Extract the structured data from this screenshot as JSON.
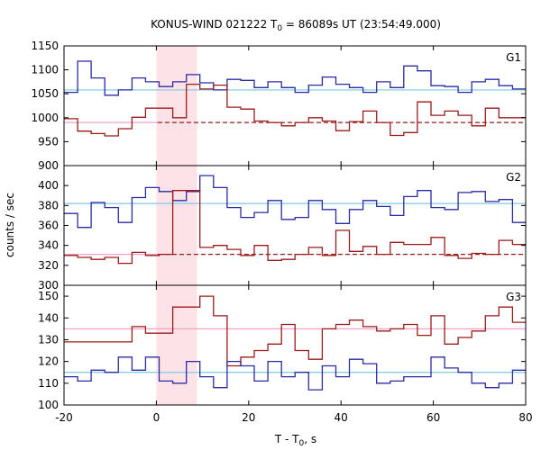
{
  "title": {
    "prefix": "KONUS-WIND 021222 T",
    "sub": "0",
    "suffix": " = 86089s UT (23:54:49.000)"
  },
  "ylabel": "counts / sec",
  "xlabel": {
    "prefix": "T - T",
    "sub": "0",
    "suffix": ", s"
  },
  "colors": {
    "blue_series": "#2b2ba4",
    "red_series": "#9c1b1b",
    "blue_background": "#7ec8e3",
    "red_background": "#f2a0c8",
    "shade": "#fde3e8"
  },
  "chart_data": {
    "type": "line",
    "step": true,
    "xlim": [
      -20,
      80
    ],
    "x_ticks": [
      -20,
      0,
      20,
      40,
      60,
      80
    ],
    "bin_width_s": 2.944,
    "bin_start": -20,
    "shaded_interval": [
      0,
      8.8
    ],
    "grid": false,
    "panels": [
      {
        "label": "G1",
        "ylim": [
          900,
          1150
        ],
        "y_ticks": [
          900,
          950,
          1000,
          1050,
          1100,
          1150
        ],
        "background": [
          {
            "series": "blue",
            "value": 1058,
            "x_range": [
              -20,
              80
            ]
          },
          {
            "series": "red",
            "value": 990,
            "x_range": [
              -20,
              0.3
            ],
            "dashed_from": 0.3
          }
        ],
        "series": [
          {
            "series": "blue",
            "values": [
              1053,
              1118,
              1083,
              1047,
              1058,
              1083,
              1075,
              1065,
              1075,
              1090,
              1073,
              1058,
              1080,
              1078,
              1063,
              1075,
              1063,
              1053,
              1068,
              1085,
              1070,
              1063,
              1053,
              1075,
              1063,
              1108,
              1098,
              1067,
              1065,
              1053,
              1075,
              1080,
              1067,
              1060,
              1058,
              1060,
              1080,
              1080
            ]
          },
          {
            "series": "red",
            "values": [
              998,
              972,
              967,
              962,
              977,
              1001,
              1020,
              1020,
              1000,
              1070,
              1060,
              1068,
              1022,
              1018,
              993,
              990,
              983,
              990,
              1000,
              993,
              973,
              992,
              1014,
              990,
              963,
              969,
              1033,
              1005,
              1014,
              1005,
              983,
              1020,
              1000,
              1000,
              1000,
              993,
              993,
              966,
              990,
              1035,
              1003,
              993,
              990
            ]
          }
        ]
      },
      {
        "label": "G2",
        "ylim": [
          300,
          420
        ],
        "y_ticks": [
          300,
          320,
          340,
          360,
          380,
          400,
          420
        ],
        "background": [
          {
            "series": "blue",
            "value": 382,
            "x_range": [
              -20,
              80
            ]
          },
          {
            "series": "red",
            "value": 331,
            "x_range": [
              -20,
              0.3
            ],
            "dashed_from": 0.3
          }
        ],
        "series": [
          {
            "series": "blue",
            "values": [
              372,
              358,
              383,
              378,
              363,
              388,
              398,
              394,
              385,
              394,
              410,
              398,
              378,
              368,
              373,
              385,
              366,
              368,
              385,
              376,
              362,
              376,
              385,
              379,
              370,
              389,
              395,
              378,
              376,
              393,
              394,
              384,
              386,
              363,
              396,
              389,
              385,
              381,
              378,
              383,
              380,
              385
            ]
          },
          {
            "series": "red",
            "values": [
              330,
              328,
              326,
              328,
              322,
              333,
              330,
              331,
              395,
              395,
              338,
              340,
              336,
              330,
              340,
              325,
              326,
              331,
              338,
              330,
              355,
              334,
              339,
              331,
              343,
              341,
              341,
              348,
              330,
              327,
              332,
              331,
              345,
              341,
              333,
              331,
              330
            ]
          }
        ]
      },
      {
        "label": "G3",
        "ylim": [
          100,
          155
        ],
        "y_ticks": [
          100,
          110,
          120,
          130,
          140,
          150
        ],
        "background": [
          {
            "series": "red",
            "value": 135,
            "x_range": [
              -20,
              80
            ]
          },
          {
            "series": "blue",
            "value": 115,
            "x_range": [
              -20,
              80
            ]
          }
        ],
        "series": [
          {
            "series": "red",
            "values": [
              129,
              129,
              129,
              129,
              129,
              136,
              133,
              133,
              145,
              145,
              150,
              141,
              118,
              122,
              125,
              128,
              137,
              125,
              121,
              135,
              137,
              139,
              136,
              134,
              135,
              137,
              132,
              141,
              128,
              131,
              134,
              141,
              145,
              138,
              146,
              132,
              133,
              136,
              136
            ]
          },
          {
            "series": "blue",
            "values": [
              113,
              111,
              116,
              115,
              122,
              116,
              122,
              111,
              110,
              120,
              113,
              108,
              120,
              118,
              111,
              120,
              113,
              115,
              107,
              118,
              113,
              121,
              119,
              110,
              111,
              113,
              113,
              122,
              117,
              115,
              110,
              108,
              110,
              116,
              110,
              111,
              116
            ]
          }
        ]
      }
    ]
  }
}
